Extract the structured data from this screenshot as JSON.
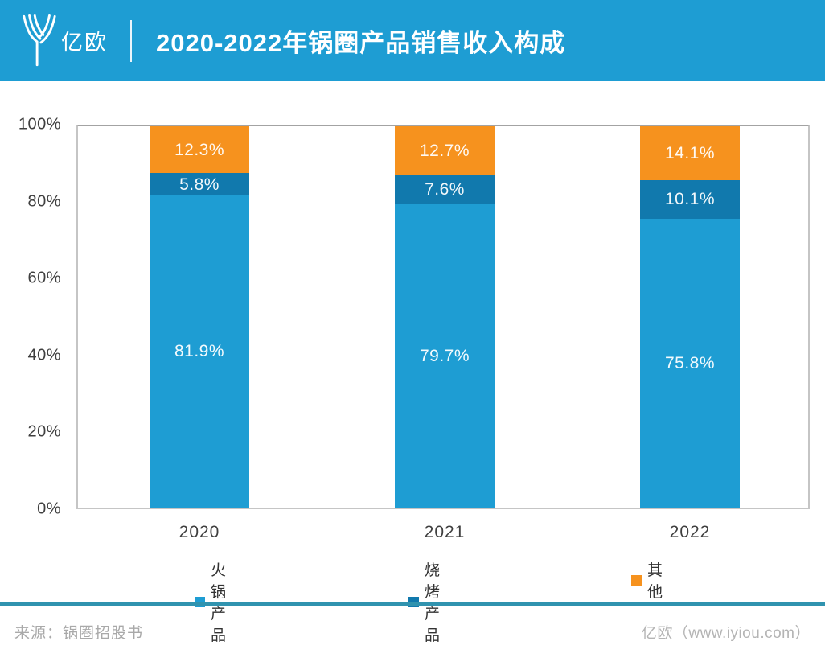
{
  "header": {
    "logo_text": "亿欧",
    "title": "2020-2022年锅圈产品销售收入构成"
  },
  "chart_data": {
    "type": "bar",
    "variant": "stacked-100-percent",
    "title": "2020-2022年锅圈产品销售收入构成",
    "categories": [
      "2020",
      "2021",
      "2022"
    ],
    "series": [
      {
        "name": "火锅产品",
        "slug": "hotpot",
        "color": "#1E9DD3",
        "values": [
          81.9,
          79.7,
          75.8
        ]
      },
      {
        "name": "烧烤产品",
        "slug": "bbq",
        "color": "#1179AD",
        "values": [
          5.8,
          7.6,
          10.1
        ]
      },
      {
        "name": "其他",
        "slug": "other",
        "color": "#F6921E",
        "values": [
          12.3,
          12.7,
          14.1
        ]
      }
    ],
    "y_ticks": [
      "100%",
      "80%",
      "60%",
      "40%",
      "20%",
      "0%"
    ],
    "ylim": [
      0,
      100
    ],
    "unit": "%",
    "grid": false,
    "data_labels": true,
    "legend_position": "bottom"
  },
  "footer": {
    "source": "来源：锅圈招股书",
    "credit": "亿欧（www.iyiou.com）"
  }
}
